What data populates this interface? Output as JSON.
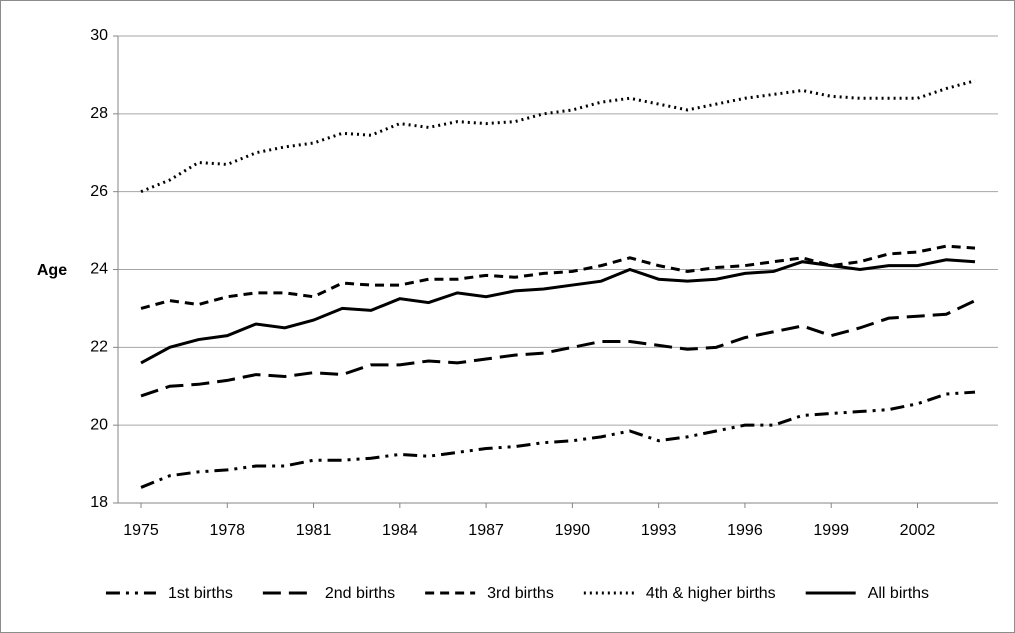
{
  "chart_data": {
    "type": "line",
    "y_label": "Age",
    "x": [
      1975,
      1976,
      1977,
      1978,
      1979,
      1980,
      1981,
      1982,
      1983,
      1984,
      1985,
      1986,
      1987,
      1988,
      1989,
      1990,
      1991,
      1992,
      1993,
      1994,
      1995,
      1996,
      1997,
      1998,
      1999,
      2000,
      2001,
      2002,
      2003,
      2004
    ],
    "xlim": [
      1974.2,
      2004.8
    ],
    "xticks": [
      1975,
      1978,
      1981,
      1984,
      1987,
      1990,
      1993,
      1996,
      1999,
      2002
    ],
    "ylim": [
      18,
      30
    ],
    "yticks": [
      18,
      20,
      22,
      24,
      26,
      28,
      30
    ],
    "grid": true,
    "legend": "bottom",
    "series": [
      {
        "name": "1st births",
        "color": "#000000",
        "dash": "14,6,3,6,3,6",
        "values": [
          18.4,
          18.7,
          18.8,
          18.85,
          18.95,
          18.95,
          19.1,
          19.1,
          19.15,
          19.25,
          19.2,
          19.3,
          19.4,
          19.45,
          19.55,
          19.6,
          19.7,
          19.85,
          19.6,
          19.7,
          19.85,
          20.0,
          20.0,
          20.25,
          20.3,
          20.35,
          20.4,
          20.55,
          20.8,
          20.85
        ]
      },
      {
        "name": "2nd births",
        "color": "#000000",
        "dash": "18,8",
        "values": [
          20.75,
          21.0,
          21.05,
          21.15,
          21.3,
          21.25,
          21.35,
          21.3,
          21.55,
          21.55,
          21.65,
          21.6,
          21.7,
          21.8,
          21.85,
          22.0,
          22.15,
          22.15,
          22.05,
          21.95,
          22.0,
          22.25,
          22.4,
          22.55,
          22.3,
          22.5,
          22.75,
          22.8,
          22.85,
          23.2
        ]
      },
      {
        "name": "3rd births",
        "color": "#000000",
        "dash": "9,6",
        "values": [
          23.0,
          23.2,
          23.1,
          23.3,
          23.4,
          23.4,
          23.3,
          23.65,
          23.6,
          23.6,
          23.75,
          23.75,
          23.85,
          23.8,
          23.9,
          23.95,
          24.1,
          24.3,
          24.1,
          23.95,
          24.05,
          24.1,
          24.2,
          24.3,
          24.1,
          24.2,
          24.4,
          24.45,
          24.6,
          24.55
        ]
      },
      {
        "name": "4th & higher births",
        "color": "#000000",
        "dash": "2,4",
        "values": [
          26.0,
          26.3,
          26.75,
          26.7,
          27.0,
          27.15,
          27.25,
          27.5,
          27.45,
          27.75,
          27.65,
          27.8,
          27.75,
          27.8,
          28.0,
          28.1,
          28.3,
          28.4,
          28.25,
          28.1,
          28.25,
          28.4,
          28.5,
          28.6,
          28.45,
          28.4,
          28.4,
          28.4,
          28.65,
          28.85
        ]
      },
      {
        "name": "All births",
        "color": "#000000",
        "dash": "none",
        "values": [
          21.6,
          22.0,
          22.2,
          22.3,
          22.6,
          22.5,
          22.7,
          23.0,
          22.95,
          23.25,
          23.15,
          23.4,
          23.3,
          23.45,
          23.5,
          23.6,
          23.7,
          24.0,
          23.75,
          23.7,
          23.75,
          23.9,
          23.95,
          24.2,
          24.1,
          24.0,
          24.1,
          24.1,
          24.25,
          24.2
        ]
      }
    ]
  }
}
